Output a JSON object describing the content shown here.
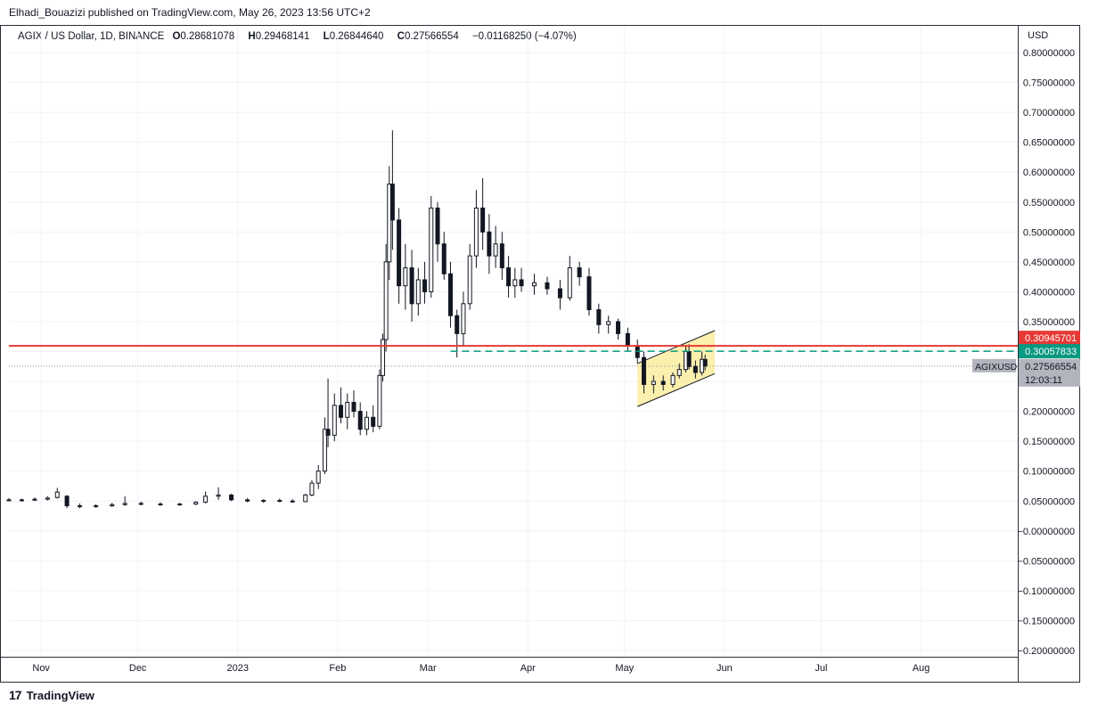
{
  "header": {
    "publisher_line": "Elhadi_Bouazizi published on TradingView.com, May 26, 2023 13:56 UTC+2"
  },
  "legend": {
    "symbol": "AGIX / US Dollar, 1D, BINANCE",
    "o_label": "O",
    "o_value": "0.28681078",
    "h_label": "H",
    "h_value": "0.29468141",
    "l_label": "L",
    "l_value": "0.26844640",
    "c_label": "C",
    "c_value": "0.27566554",
    "change": "−0.01168250 (−4.07%)"
  },
  "axis": {
    "currency": "USD"
  },
  "footer": {
    "brand": "TradingView",
    "logo_glyph": "17"
  },
  "chart_data": {
    "type": "candlestick",
    "symbol": "AGIXUSD",
    "y_ticks": [
      "0.80000000",
      "0.75000000",
      "0.70000000",
      "0.65000000",
      "0.60000000",
      "0.55000000",
      "0.50000000",
      "0.45000000",
      "0.40000000",
      "0.35000000",
      "0.30000000",
      "0.25000000",
      "0.20000000",
      "0.15000000",
      "0.10000000",
      "0.05000000",
      "−0.00000000",
      "−0.05000000",
      "−0.10000000",
      "−0.15000000",
      "−0.20000000"
    ],
    "y_tick_values": [
      0.8,
      0.75,
      0.7,
      0.65,
      0.6,
      0.55,
      0.5,
      0.45,
      0.4,
      0.35,
      0.3,
      0.25,
      0.2,
      0.15,
      0.1,
      0.05,
      0.0,
      -0.05,
      -0.1,
      -0.15,
      -0.2
    ],
    "hidden_tick_values": [
      0.3,
      0.25
    ],
    "ylim": [
      -0.2,
      0.8
    ],
    "x_ticks": [
      {
        "label": "Nov",
        "date": "2022-11-01"
      },
      {
        "label": "Dec",
        "date": "2022-12-01"
      },
      {
        "label": "2023",
        "date": "2023-01-01"
      },
      {
        "label": "Feb",
        "date": "2023-02-01"
      },
      {
        "label": "Mar",
        "date": "2023-03-01"
      },
      {
        "label": "Apr",
        "date": "2023-04-01"
      },
      {
        "label": "May",
        "date": "2023-05-01"
      },
      {
        "label": "Jun",
        "date": "2023-06-01"
      },
      {
        "label": "Jul",
        "date": "2023-07-01"
      },
      {
        "label": "Aug",
        "date": "2023-08-01"
      }
    ],
    "xlim": [
      "2022-10-22",
      "2023-08-31"
    ],
    "grid": true,
    "candles": [
      {
        "d": "2022-10-22",
        "o": 0.052,
        "h": 0.055,
        "l": 0.05,
        "c": 0.051
      },
      {
        "d": "2022-10-26",
        "o": 0.051,
        "h": 0.054,
        "l": 0.049,
        "c": 0.052
      },
      {
        "d": "2022-10-30",
        "o": 0.052,
        "h": 0.056,
        "l": 0.05,
        "c": 0.053
      },
      {
        "d": "2022-11-03",
        "o": 0.053,
        "h": 0.058,
        "l": 0.051,
        "c": 0.055
      },
      {
        "d": "2022-11-06",
        "o": 0.056,
        "h": 0.072,
        "l": 0.054,
        "c": 0.065
      },
      {
        "d": "2022-11-09",
        "o": 0.058,
        "h": 0.06,
        "l": 0.038,
        "c": 0.042
      },
      {
        "d": "2022-11-13",
        "o": 0.042,
        "h": 0.046,
        "l": 0.038,
        "c": 0.041
      },
      {
        "d": "2022-11-18",
        "o": 0.041,
        "h": 0.045,
        "l": 0.039,
        "c": 0.042
      },
      {
        "d": "2022-11-23",
        "o": 0.042,
        "h": 0.047,
        "l": 0.04,
        "c": 0.044
      },
      {
        "d": "2022-11-27",
        "o": 0.044,
        "h": 0.058,
        "l": 0.042,
        "c": 0.046
      },
      {
        "d": "2022-12-02",
        "o": 0.046,
        "h": 0.049,
        "l": 0.043,
        "c": 0.045
      },
      {
        "d": "2022-12-08",
        "o": 0.045,
        "h": 0.048,
        "l": 0.042,
        "c": 0.044
      },
      {
        "d": "2022-12-14",
        "o": 0.044,
        "h": 0.047,
        "l": 0.042,
        "c": 0.045
      },
      {
        "d": "2022-12-19",
        "o": 0.045,
        "h": 0.05,
        "l": 0.043,
        "c": 0.048
      },
      {
        "d": "2022-12-22",
        "o": 0.048,
        "h": 0.066,
        "l": 0.046,
        "c": 0.058
      },
      {
        "d": "2022-12-26",
        "o": 0.058,
        "h": 0.073,
        "l": 0.052,
        "c": 0.06
      },
      {
        "d": "2022-12-30",
        "o": 0.06,
        "h": 0.062,
        "l": 0.05,
        "c": 0.052
      },
      {
        "d": "2023-01-04",
        "o": 0.052,
        "h": 0.055,
        "l": 0.048,
        "c": 0.05
      },
      {
        "d": "2023-01-09",
        "o": 0.05,
        "h": 0.053,
        "l": 0.047,
        "c": 0.051
      },
      {
        "d": "2023-01-14",
        "o": 0.051,
        "h": 0.054,
        "l": 0.048,
        "c": 0.05
      },
      {
        "d": "2023-01-18",
        "o": 0.05,
        "h": 0.053,
        "l": 0.047,
        "c": 0.049
      },
      {
        "d": "2023-01-22",
        "o": 0.049,
        "h": 0.062,
        "l": 0.048,
        "c": 0.06
      },
      {
        "d": "2023-01-24",
        "o": 0.06,
        "h": 0.085,
        "l": 0.058,
        "c": 0.08
      },
      {
        "d": "2023-01-26",
        "o": 0.08,
        "h": 0.11,
        "l": 0.07,
        "c": 0.1
      },
      {
        "d": "2023-01-28",
        "o": 0.1,
        "h": 0.19,
        "l": 0.095,
        "c": 0.17
      },
      {
        "d": "2023-01-29",
        "o": 0.17,
        "h": 0.255,
        "l": 0.14,
        "c": 0.16
      },
      {
        "d": "2023-01-31",
        "o": 0.16,
        "h": 0.23,
        "l": 0.15,
        "c": 0.21
      },
      {
        "d": "2023-02-02",
        "o": 0.21,
        "h": 0.24,
        "l": 0.18,
        "c": 0.19
      },
      {
        "d": "2023-02-04",
        "o": 0.19,
        "h": 0.23,
        "l": 0.17,
        "c": 0.215
      },
      {
        "d": "2023-02-06",
        "o": 0.215,
        "h": 0.235,
        "l": 0.19,
        "c": 0.2
      },
      {
        "d": "2023-02-08",
        "o": 0.2,
        "h": 0.215,
        "l": 0.16,
        "c": 0.17
      },
      {
        "d": "2023-02-10",
        "o": 0.17,
        "h": 0.2,
        "l": 0.16,
        "c": 0.19
      },
      {
        "d": "2023-02-12",
        "o": 0.19,
        "h": 0.21,
        "l": 0.165,
        "c": 0.175
      },
      {
        "d": "2023-02-14",
        "o": 0.175,
        "h": 0.27,
        "l": 0.17,
        "c": 0.26
      },
      {
        "d": "2023-02-15",
        "o": 0.26,
        "h": 0.33,
        "l": 0.25,
        "c": 0.32
      },
      {
        "d": "2023-02-16",
        "o": 0.32,
        "h": 0.48,
        "l": 0.3,
        "c": 0.45
      },
      {
        "d": "2023-02-17",
        "o": 0.45,
        "h": 0.61,
        "l": 0.42,
        "c": 0.58
      },
      {
        "d": "2023-02-18",
        "o": 0.58,
        "h": 0.67,
        "l": 0.47,
        "c": 0.52
      },
      {
        "d": "2023-02-20",
        "o": 0.52,
        "h": 0.54,
        "l": 0.38,
        "c": 0.41
      },
      {
        "d": "2023-02-22",
        "o": 0.41,
        "h": 0.48,
        "l": 0.37,
        "c": 0.44
      },
      {
        "d": "2023-02-24",
        "o": 0.44,
        "h": 0.47,
        "l": 0.35,
        "c": 0.38
      },
      {
        "d": "2023-02-26",
        "o": 0.38,
        "h": 0.44,
        "l": 0.36,
        "c": 0.42
      },
      {
        "d": "2023-02-28",
        "o": 0.42,
        "h": 0.45,
        "l": 0.38,
        "c": 0.4
      },
      {
        "d": "2023-03-02",
        "o": 0.4,
        "h": 0.56,
        "l": 0.39,
        "c": 0.54
      },
      {
        "d": "2023-03-04",
        "o": 0.54,
        "h": 0.55,
        "l": 0.45,
        "c": 0.48
      },
      {
        "d": "2023-03-06",
        "o": 0.48,
        "h": 0.5,
        "l": 0.42,
        "c": 0.43
      },
      {
        "d": "2023-03-08",
        "o": 0.43,
        "h": 0.45,
        "l": 0.34,
        "c": 0.36
      },
      {
        "d": "2023-03-10",
        "o": 0.36,
        "h": 0.37,
        "l": 0.29,
        "c": 0.33
      },
      {
        "d": "2023-03-12",
        "o": 0.33,
        "h": 0.4,
        "l": 0.31,
        "c": 0.38
      },
      {
        "d": "2023-03-14",
        "o": 0.38,
        "h": 0.48,
        "l": 0.37,
        "c": 0.46
      },
      {
        "d": "2023-03-16",
        "o": 0.46,
        "h": 0.57,
        "l": 0.44,
        "c": 0.54
      },
      {
        "d": "2023-03-18",
        "o": 0.54,
        "h": 0.59,
        "l": 0.47,
        "c": 0.5
      },
      {
        "d": "2023-03-20",
        "o": 0.5,
        "h": 0.53,
        "l": 0.43,
        "c": 0.46
      },
      {
        "d": "2023-03-22",
        "o": 0.46,
        "h": 0.51,
        "l": 0.44,
        "c": 0.48
      },
      {
        "d": "2023-03-24",
        "o": 0.48,
        "h": 0.5,
        "l": 0.42,
        "c": 0.44
      },
      {
        "d": "2023-03-26",
        "o": 0.44,
        "h": 0.46,
        "l": 0.39,
        "c": 0.41
      },
      {
        "d": "2023-03-28",
        "o": 0.41,
        "h": 0.44,
        "l": 0.39,
        "c": 0.42
      },
      {
        "d": "2023-03-30",
        "o": 0.42,
        "h": 0.44,
        "l": 0.4,
        "c": 0.41
      },
      {
        "d": "2023-04-03",
        "o": 0.41,
        "h": 0.43,
        "l": 0.395,
        "c": 0.415
      },
      {
        "d": "2023-04-07",
        "o": 0.415,
        "h": 0.425,
        "l": 0.395,
        "c": 0.405
      },
      {
        "d": "2023-04-11",
        "o": 0.405,
        "h": 0.42,
        "l": 0.37,
        "c": 0.39
      },
      {
        "d": "2023-04-14",
        "o": 0.39,
        "h": 0.46,
        "l": 0.385,
        "c": 0.44
      },
      {
        "d": "2023-04-17",
        "o": 0.44,
        "h": 0.45,
        "l": 0.41,
        "c": 0.425
      },
      {
        "d": "2023-04-20",
        "o": 0.425,
        "h": 0.44,
        "l": 0.36,
        "c": 0.37
      },
      {
        "d": "2023-04-23",
        "o": 0.37,
        "h": 0.38,
        "l": 0.33,
        "c": 0.345
      },
      {
        "d": "2023-04-26",
        "o": 0.345,
        "h": 0.36,
        "l": 0.33,
        "c": 0.35
      },
      {
        "d": "2023-04-29",
        "o": 0.35,
        "h": 0.355,
        "l": 0.32,
        "c": 0.33
      },
      {
        "d": "2023-05-02",
        "o": 0.33,
        "h": 0.34,
        "l": 0.3,
        "c": 0.31
      },
      {
        "d": "2023-05-05",
        "o": 0.31,
        "h": 0.32,
        "l": 0.28,
        "c": 0.29
      },
      {
        "d": "2023-05-07",
        "o": 0.29,
        "h": 0.3,
        "l": 0.23,
        "c": 0.245
      },
      {
        "d": "2023-05-10",
        "o": 0.245,
        "h": 0.26,
        "l": 0.23,
        "c": 0.25
      },
      {
        "d": "2023-05-13",
        "o": 0.25,
        "h": 0.26,
        "l": 0.235,
        "c": 0.245
      },
      {
        "d": "2023-05-16",
        "o": 0.245,
        "h": 0.265,
        "l": 0.24,
        "c": 0.26
      },
      {
        "d": "2023-05-18",
        "o": 0.26,
        "h": 0.28,
        "l": 0.255,
        "c": 0.27
      },
      {
        "d": "2023-05-20",
        "o": 0.27,
        "h": 0.31,
        "l": 0.265,
        "c": 0.3
      },
      {
        "d": "2023-05-21",
        "o": 0.3,
        "h": 0.312,
        "l": 0.27,
        "c": 0.275
      },
      {
        "d": "2023-05-23",
        "o": 0.275,
        "h": 0.285,
        "l": 0.255,
        "c": 0.265
      },
      {
        "d": "2023-05-25",
        "o": 0.265,
        "h": 0.3,
        "l": 0.26,
        "c": 0.287
      },
      {
        "d": "2023-05-26",
        "o": 0.2868,
        "h": 0.2947,
        "l": 0.2684,
        "c": 0.2757
      }
    ],
    "annotations": [
      {
        "type": "horizontal-line",
        "value": 0.30945701,
        "color": "#e53935",
        "label": "0.30945701"
      },
      {
        "type": "horizontal-ray-dashed",
        "value": 0.30057833,
        "start": "2023-03-08",
        "color": "#089981",
        "label": "0.30057833"
      },
      {
        "type": "channel",
        "color": "#f7e36a",
        "p1": {
          "d": "2023-05-05",
          "v": 0.28
        },
        "p2": {
          "d": "2023-05-29",
          "v": 0.335
        },
        "offset": -0.072
      }
    ],
    "last_price": {
      "symbol": "AGIXUSD",
      "value": "0.27566554",
      "countdown": "12:03:11",
      "level": 0.27566554
    }
  }
}
